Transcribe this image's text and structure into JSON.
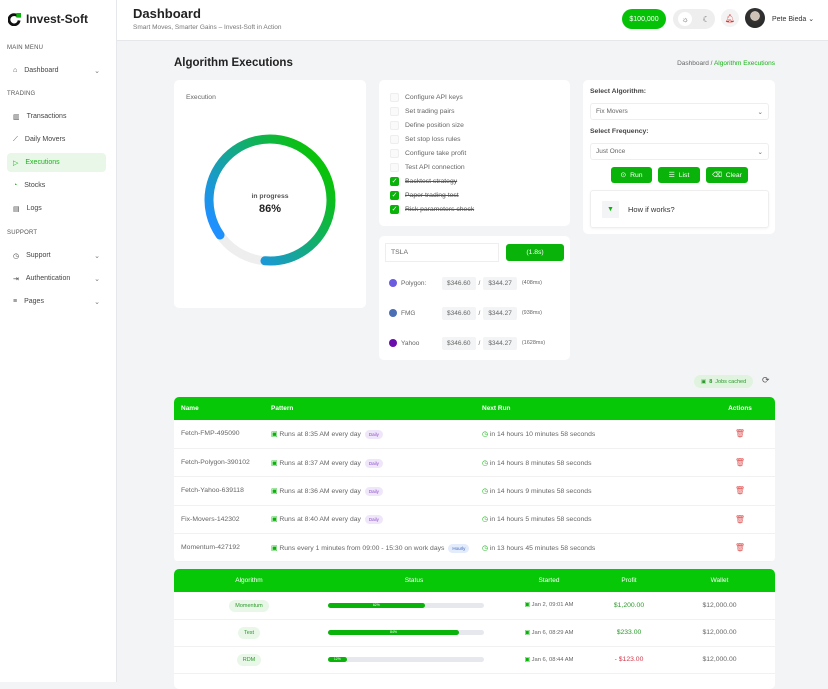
{
  "brand": {
    "name": "Invest-Soft"
  },
  "sidebar": {
    "sections": [
      "MAIN MENU",
      "TRADING",
      "SUPPORT"
    ],
    "items": [
      {
        "label": "Dashboard",
        "icon": "home-icon"
      },
      {
        "label": "Transactions",
        "icon": "bar-chart-icon"
      },
      {
        "label": "Daily Movers",
        "icon": "trend-icon"
      },
      {
        "label": "Executions",
        "icon": "play-icon"
      },
      {
        "label": "Stocks",
        "icon": "pie-icon"
      },
      {
        "label": "Logs",
        "icon": "log-icon"
      },
      {
        "label": "Support",
        "icon": "support-icon"
      },
      {
        "label": "Authentication",
        "icon": "login-icon"
      },
      {
        "label": "Pages",
        "icon": "pages-icon"
      }
    ]
  },
  "header": {
    "title": "Dashboard",
    "subtitle": "Smart Moves, Smarter Gains – Invest-Soft in Action",
    "wallet": "$100,000",
    "user": "Pete Bieda"
  },
  "page": {
    "title": "Algorithm Executions",
    "breadcrumb": [
      "Dashboard /",
      "Algorithm Executions"
    ]
  },
  "execution": {
    "label": "Execution",
    "status": "in progress",
    "percent_text": "86%",
    "percent": 86,
    "colors": {
      "start": "#0ac20a",
      "end": "#1e90ff"
    }
  },
  "checklist": [
    {
      "label": "Configure API keys",
      "done": false
    },
    {
      "label": "Set trading pairs",
      "done": false
    },
    {
      "label": "Define position size",
      "done": false
    },
    {
      "label": "Set stop loss rules",
      "done": false
    },
    {
      "label": "Configure take profit",
      "done": false
    },
    {
      "label": "Test API connection",
      "done": false
    },
    {
      "label": "Backtest strategy",
      "done": true
    },
    {
      "label": "Paper trading test",
      "done": true
    },
    {
      "label": "Risk parameters check",
      "done": true
    }
  ],
  "quote": {
    "symbol": "TSLA",
    "button": "(1.8s)",
    "sources": [
      {
        "name": "Polygon:",
        "bid": "$346.60",
        "sep": "/",
        "ask": "$344.27",
        "latency": "(408ms)",
        "color": "#6a5be0"
      },
      {
        "name": "FMG",
        "bid": "$346.60",
        "sep": "/",
        "ask": "$344.27",
        "latency": "(938ms)",
        "color": "#4a6fb5"
      },
      {
        "name": "Yahoo",
        "bid": "$346.60",
        "sep": "/",
        "ask": "$344.27",
        "latency": "(1628ms)",
        "color": "#6a0dad"
      }
    ]
  },
  "controls": {
    "algo_label": "Select Algorithm:",
    "algo_value": "Fix Movers",
    "freq_label": "Select Frequency:",
    "freq_value": "Just Once",
    "run": "Run",
    "list": "List",
    "clear": "Clear",
    "how": "How if works?"
  },
  "jobs": {
    "cached": "8",
    "cached_label": "Jobs cached",
    "headers": [
      "Name",
      "Pattern",
      "Next Run",
      "Actions"
    ],
    "rows": [
      {
        "name": "Fetch-FMP-495090",
        "pattern": "Runs at 8:35 AM every day",
        "tag": "Daily",
        "next": "in 14 hours 10 minutes 58 seconds"
      },
      {
        "name": "Fetch-Polygon-390102",
        "pattern": "Runs at 8:37 AM every day",
        "tag": "Daily",
        "next": "in 14 hours 8 minutes 58 seconds"
      },
      {
        "name": "Fetch-Yahoo-639118",
        "pattern": "Runs at 8:36 AM every day",
        "tag": "Daily",
        "next": "in 14 hours 9 minutes 58 seconds"
      },
      {
        "name": "Fix-Movers-142302",
        "pattern": "Runs at 8:40 AM every day",
        "tag": "Daily",
        "next": "in 14 hours 5 minutes 58 seconds"
      },
      {
        "name": "Momentum-427192",
        "pattern": "Runs every 1 minutes from 09:00 - 15:30 on work days",
        "tag": "Hourly",
        "next": "in 13 hours 45 minutes 58 seconds"
      }
    ]
  },
  "runs": {
    "headers": [
      "Algorithm",
      "Status",
      "Started",
      "Profit",
      "Wallet"
    ],
    "rows": [
      {
        "algo": "Momentum",
        "progress": 62,
        "progress_text": "62%",
        "started": "Jan 2, 09:01 AM",
        "profit": "$1,200.00",
        "negative": false,
        "wallet": "$12,000.00"
      },
      {
        "algo": "Test",
        "progress": 84,
        "progress_text": "84%",
        "started": "Jan 6, 08:29 AM",
        "profit": "$233.00",
        "negative": false,
        "wallet": "$12,000.00"
      },
      {
        "algo": "RDM",
        "progress": 12,
        "progress_text": "12%",
        "started": "Jan 6, 08:44 AM",
        "profit": "- $123.00",
        "negative": true,
        "wallet": "$12,000.00"
      }
    ]
  }
}
